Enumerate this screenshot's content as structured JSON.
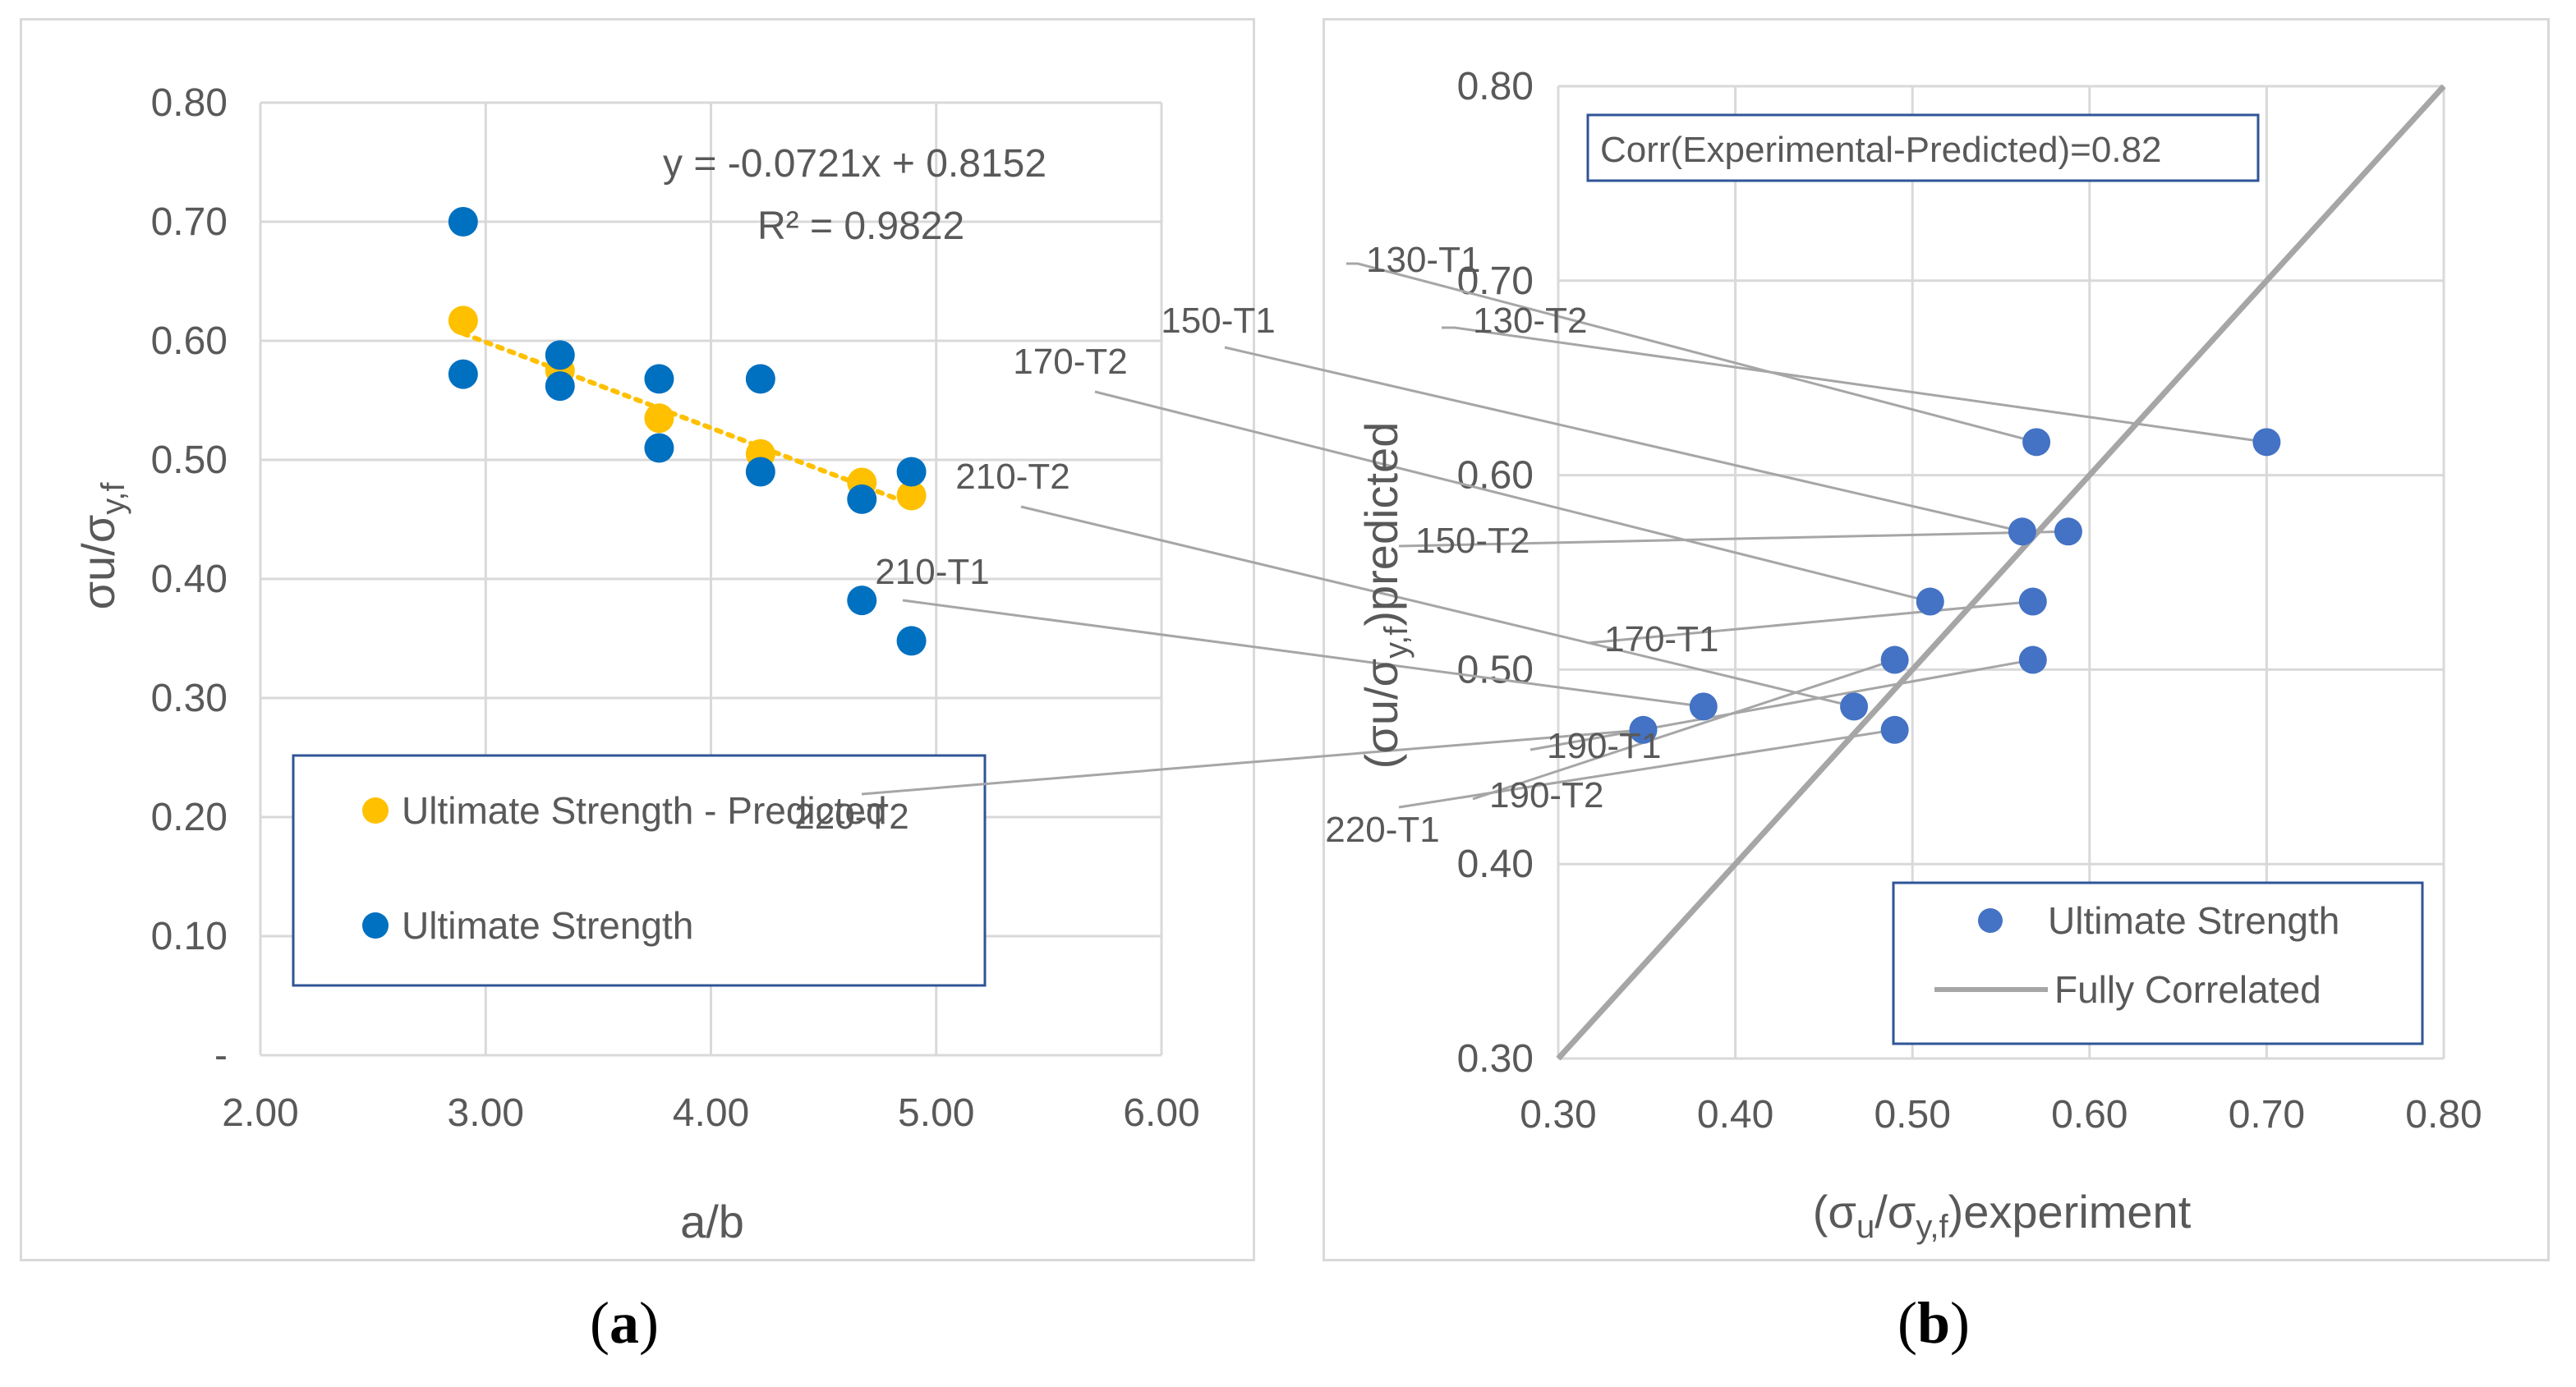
{
  "captions": {
    "a": "a",
    "b": "b"
  },
  "chart_data": [
    {
      "type": "scatter",
      "id": "a",
      "title": "",
      "xlabel": "a/b",
      "ylabel_main": "σu/σ",
      "ylabel_sub": "y,f",
      "xlim": [
        2.0,
        6.0
      ],
      "ylim": [
        0.0,
        0.8
      ],
      "x_ticks": [
        "2.00",
        "3.00",
        "4.00",
        "5.00",
        "6.00"
      ],
      "y_ticks": [
        "-",
        "0.10",
        "0.20",
        "0.30",
        "0.40",
        "0.50",
        "0.60",
        "0.70",
        "0.80"
      ],
      "grid": true,
      "series": [
        {
          "name": "Ultimate Strength - Predicted",
          "color": "#ffc000",
          "x": [
            2.9,
            3.33,
            3.77,
            4.22,
            4.67,
            4.89
          ],
          "y": [
            0.617,
            0.575,
            0.535,
            0.505,
            0.481,
            0.47
          ]
        },
        {
          "name": "Ultimate Strength",
          "color": "#0070c0",
          "x": [
            2.9,
            2.9,
            3.33,
            3.33,
            3.77,
            3.77,
            4.22,
            4.22,
            4.67,
            4.67,
            4.89,
            4.89
          ],
          "y": [
            0.7,
            0.572,
            0.588,
            0.562,
            0.568,
            0.51,
            0.568,
            0.49,
            0.467,
            0.382,
            0.49,
            0.348
          ]
        }
      ],
      "trendline": {
        "series": "Ultimate Strength - Predicted",
        "slope": -0.0721,
        "intercept": 0.8152,
        "x_range": [
          2.9,
          4.89
        ],
        "color": "#ffc000"
      },
      "equation": "y = -0.0721x + 0.8152",
      "r_squared": "R² = 0.9822",
      "legend": [
        "Ultimate Strength - Predicted",
        "Ultimate Strength"
      ]
    },
    {
      "type": "scatter",
      "id": "b",
      "title": "",
      "xlabel_pre": "(σ",
      "xlabel_sub1": "u",
      "xlabel_mid": "/σ",
      "xlabel_sub2": "y,f",
      "xlabel_post": ")experiment",
      "ylabel_pre": "(σu/σ",
      "ylabel_sub": "y,f",
      "ylabel_post": ")predicted",
      "xlim": [
        0.3,
        0.8
      ],
      "ylim": [
        0.3,
        0.8
      ],
      "x_ticks": [
        "0.30",
        "0.40",
        "0.50",
        "0.60",
        "0.70",
        "0.80"
      ],
      "y_ticks": [
        "0.30",
        "0.40",
        "0.50",
        "0.60",
        "0.70",
        "0.80"
      ],
      "grid": true,
      "annotation": "Corr(Experimental-Predicted)=0.82",
      "series": [
        {
          "name": "Ultimate Strength",
          "color": "#4472c4",
          "points": [
            {
              "label": "130-T1",
              "x": 0.57,
              "y": 0.617
            },
            {
              "label": "130-T2",
              "x": 0.7,
              "y": 0.617
            },
            {
              "label": "150-T1",
              "x": 0.562,
              "y": 0.571
            },
            {
              "label": "150-T2",
              "x": 0.588,
              "y": 0.571
            },
            {
              "label": "170-T2",
              "x": 0.51,
              "y": 0.535
            },
            {
              "label": "170-T1",
              "x": 0.568,
              "y": 0.535
            },
            {
              "label": "190-T2",
              "x": 0.49,
              "y": 0.505
            },
            {
              "label": "190-T1",
              "x": 0.568,
              "y": 0.505
            },
            {
              "label": "210-T2",
              "x": 0.467,
              "y": 0.481
            },
            {
              "label": "210-T1",
              "x": 0.382,
              "y": 0.481
            },
            {
              "label": "220-T1",
              "x": 0.49,
              "y": 0.469
            },
            {
              "label": "220-T2",
              "x": 0.348,
              "y": 0.469
            }
          ]
        },
        {
          "name": "Fully Correlated",
          "color": "#a6a6a6",
          "x": [
            0.3,
            0.8
          ],
          "y": [
            0.3,
            0.8
          ]
        }
      ],
      "legend": [
        "Ultimate Strength",
        "Fully Correlated"
      ]
    }
  ]
}
